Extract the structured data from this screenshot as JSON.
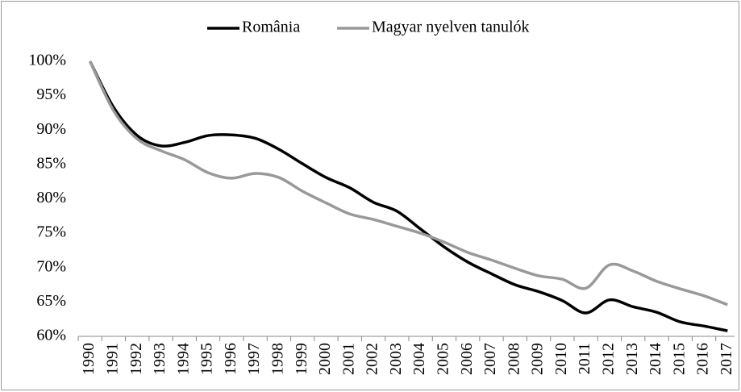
{
  "chart_data": {
    "type": "line",
    "categories": [
      "1990",
      "1991",
      "1992",
      "1993",
      "1994",
      "1995",
      "1996",
      "1997",
      "1998",
      "1999",
      "2000",
      "2001",
      "2002",
      "2003",
      "2004",
      "2005",
      "2006",
      "2007",
      "2008",
      "2009",
      "2010",
      "2011",
      "2012",
      "2013",
      "2014",
      "2015",
      "2016",
      "2017"
    ],
    "series": [
      {
        "name": "România",
        "color": "#000000",
        "values": [
          100,
          93.3,
          89.2,
          87.7,
          88.2,
          89.2,
          89.3,
          88.8,
          87.2,
          85.1,
          83.1,
          81.6,
          79.5,
          78.2,
          75.6,
          73.0,
          70.8,
          69.1,
          67.5,
          66.5,
          65.2,
          63.4,
          65.3,
          64.3,
          63.5,
          62.1,
          61.5,
          60.8
        ]
      },
      {
        "name": "Magyar nyelven tanulók",
        "color": "#999999",
        "values": [
          100,
          92.8,
          88.7,
          87.0,
          85.7,
          83.8,
          83.0,
          83.7,
          83.1,
          81.1,
          79.4,
          77.8,
          77.0,
          76.0,
          75.0,
          73.7,
          72.2,
          71.1,
          69.9,
          68.8,
          68.3,
          67.0,
          70.4,
          69.5,
          68.0,
          66.9,
          65.9,
          64.6
        ]
      }
    ],
    "ylim": [
      60,
      100
    ],
    "yticks": [
      {
        "value": 60,
        "label": "60%"
      },
      {
        "value": 65,
        "label": "65%"
      },
      {
        "value": 70,
        "label": "70%"
      },
      {
        "value": 75,
        "label": "75%"
      },
      {
        "value": 80,
        "label": "80%"
      },
      {
        "value": 85,
        "label": "85%"
      },
      {
        "value": 90,
        "label": "90%"
      },
      {
        "value": 95,
        "label": "95%"
      },
      {
        "value": 100,
        "label": "100%"
      }
    ],
    "grid": false,
    "legend": "top"
  }
}
